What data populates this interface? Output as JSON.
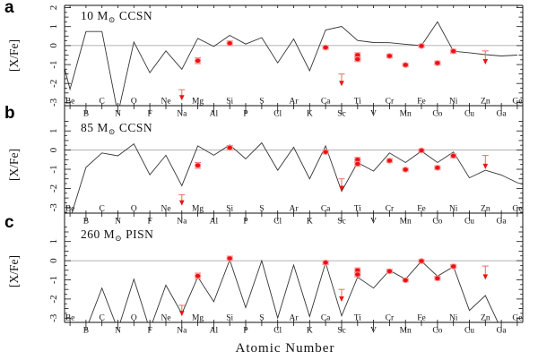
{
  "figure": {
    "xlabel": "Atomic Number",
    "ylabel": "[X/Fe]"
  },
  "colors": {
    "model_line": "#333333",
    "zero_line": "#999999",
    "axis": "#111111",
    "point_red": "#ee1111",
    "point_halo": "#ff9a9a",
    "errorbar_red": "#ff7070",
    "background": "#ffffff"
  },
  "elements": {
    "even_row": [
      {
        "z": 4,
        "sym": "Be"
      },
      {
        "z": 6,
        "sym": "C"
      },
      {
        "z": 8,
        "sym": "O"
      },
      {
        "z": 10,
        "sym": "Ne"
      },
      {
        "z": 12,
        "sym": "Mg"
      },
      {
        "z": 14,
        "sym": "Si"
      },
      {
        "z": 16,
        "sym": "S"
      },
      {
        "z": 18,
        "sym": "Ar"
      },
      {
        "z": 20,
        "sym": "Ca"
      },
      {
        "z": 22,
        "sym": "Ti"
      },
      {
        "z": 24,
        "sym": "Cr"
      },
      {
        "z": 26,
        "sym": "Fe"
      },
      {
        "z": 28,
        "sym": "Ni"
      },
      {
        "z": 30,
        "sym": "Zn"
      },
      {
        "z": 32,
        "sym": "Ge"
      }
    ],
    "odd_row": [
      {
        "z": 5,
        "sym": "B"
      },
      {
        "z": 7,
        "sym": "N"
      },
      {
        "z": 9,
        "sym": "F"
      },
      {
        "z": 11,
        "sym": "Na"
      },
      {
        "z": 13,
        "sym": "Al"
      },
      {
        "z": 15,
        "sym": "P"
      },
      {
        "z": 17,
        "sym": "Cl"
      },
      {
        "z": 19,
        "sym": "K"
      },
      {
        "z": 21,
        "sym": "Sc"
      },
      {
        "z": 23,
        "sym": "V"
      },
      {
        "z": 25,
        "sym": "Mn"
      },
      {
        "z": 27,
        "sym": "Co"
      },
      {
        "z": 29,
        "sym": "Cu"
      },
      {
        "z": 31,
        "sym": "Ga"
      }
    ]
  },
  "observations": {
    "points": [
      {
        "el": "Mg",
        "z": 12,
        "xfe": -0.8,
        "err": 0.15
      },
      {
        "el": "Si",
        "z": 14,
        "xfe": 0.12,
        "err": 0.12
      },
      {
        "el": "Ca",
        "z": 20,
        "xfe": -0.1,
        "err": 0.1
      },
      {
        "el": "Ti",
        "z": 22,
        "xfe": -0.5,
        "err": 0.12
      },
      {
        "el": "Ti",
        "z": 22,
        "xfe": -0.72,
        "err": 0.12
      },
      {
        "el": "Cr",
        "z": 24,
        "xfe": -0.55,
        "err": 0.1
      },
      {
        "el": "Mn",
        "z": 25,
        "xfe": -1.02,
        "err": 0.08
      },
      {
        "el": "Fe",
        "z": 26,
        "xfe": -0.02,
        "err": 0.08
      },
      {
        "el": "Co",
        "z": 27,
        "xfe": -0.92,
        "err": 0.1
      },
      {
        "el": "Ni",
        "z": 28,
        "xfe": -0.3,
        "err": 0.1
      }
    ],
    "upper_limits": [
      {
        "el": "Na",
        "z": 11,
        "xfe": -2.33,
        "arrow_to": -2.85
      },
      {
        "el": "Sc",
        "z": 21,
        "xfe": -1.5,
        "arrow_to": -2.1
      },
      {
        "el": "Zn",
        "z": 30,
        "xfe": -0.28,
        "arrow_to": -0.95
      }
    ]
  },
  "panels": [
    {
      "label": "a",
      "title_pre": "10 M",
      "title_sun": "⊙",
      "title_post": " CCSN",
      "ylim": [
        -3.17,
        2.12
      ],
      "yticks": [
        2,
        1,
        0,
        -1,
        -2,
        -3
      ],
      "line": {
        "z": [
          3.66,
          4,
          5,
          6,
          7,
          8,
          9,
          10,
          11,
          12,
          13,
          14,
          15,
          16,
          17,
          18,
          19,
          20,
          21,
          22,
          23,
          24,
          25,
          26,
          27,
          28,
          29,
          30,
          31,
          32
        ],
        "xfe": [
          -1.2,
          -2.3,
          0.74,
          0.74,
          -3.6,
          0.19,
          -1.43,
          -0.28,
          -1.25,
          0.38,
          -0.05,
          0.54,
          0.08,
          0.42,
          -0.91,
          0.35,
          -1.33,
          0.82,
          1.01,
          0.27,
          0.16,
          0.15,
          0.07,
          0.0,
          1.25,
          -0.3,
          -0.38,
          -0.48,
          -0.55,
          -0.5
        ]
      }
    },
    {
      "label": "b",
      "title_pre": "85 M",
      "title_sun": "⊙",
      "title_post": " CCSN",
      "ylim": [
        -3.29,
        1.71
      ],
      "yticks": [
        1,
        0,
        -1,
        -2,
        -3
      ],
      "line": {
        "z": [
          4,
          5,
          6,
          7,
          8,
          9,
          10,
          11,
          12,
          13,
          14,
          15,
          16,
          17,
          18,
          19,
          20,
          21,
          22,
          23,
          24,
          25,
          26,
          27,
          28,
          29,
          30,
          31,
          32,
          32.34
        ],
        "xfe": [
          -3.6,
          -0.9,
          -0.15,
          -0.3,
          0.32,
          -1.29,
          -0.27,
          -1.86,
          0.22,
          -0.27,
          0.27,
          -0.46,
          0.38,
          -1.05,
          0.15,
          -1.5,
          0.22,
          -2.15,
          -0.65,
          -1.1,
          -0.15,
          -0.65,
          -0.05,
          -0.65,
          -0.1,
          -1.45,
          -1.05,
          -1.3,
          -1.7,
          -1.78
        ]
      }
    },
    {
      "label": "c",
      "title_pre": "260 M",
      "title_sun": "⊙",
      "title_post": " PISN",
      "ylim": [
        -3.22,
        1.92
      ],
      "yticks": [
        1,
        0,
        -1,
        -2,
        -3
      ],
      "line": {
        "z": [
          4,
          5,
          6,
          7,
          8,
          9,
          10,
          11,
          12,
          13,
          14,
          15,
          16,
          17,
          18,
          19,
          20,
          21,
          22,
          23,
          24,
          25,
          26,
          27,
          28,
          29,
          30,
          31,
          32
        ],
        "xfe": [
          -3.6,
          -3.6,
          -1.43,
          -3.6,
          -0.97,
          -3.6,
          -1.28,
          -2.76,
          -0.85,
          -2.14,
          0.04,
          -2.45,
          0.0,
          -2.99,
          -0.23,
          -2.91,
          -0.11,
          -2.88,
          -0.86,
          -1.43,
          -0.5,
          -0.97,
          -0.03,
          -0.81,
          -0.31,
          -2.6,
          -1.82,
          -3.6,
          -3.6
        ]
      }
    }
  ],
  "chart_data": [
    {
      "type": "line",
      "panel": "a",
      "title": "10 M⊙ CCSN",
      "xlabel": "Atomic Number",
      "ylabel": "[X/Fe]",
      "xlim": [
        3.66,
        32.34
      ],
      "ylim": [
        -3.17,
        2.12
      ],
      "x": [
        4,
        5,
        6,
        7,
        8,
        9,
        10,
        11,
        12,
        13,
        14,
        15,
        16,
        17,
        18,
        19,
        20,
        21,
        22,
        23,
        24,
        25,
        26,
        27,
        28,
        29,
        30,
        31,
        32
      ],
      "series": [
        {
          "name": "model yield",
          "values": [
            -2.3,
            0.74,
            0.74,
            -3.6,
            0.19,
            -1.43,
            -0.28,
            -1.25,
            0.38,
            -0.05,
            0.54,
            0.08,
            0.42,
            -0.91,
            0.35,
            -1.33,
            0.82,
            1.01,
            0.27,
            0.16,
            0.15,
            0.07,
            0.0,
            1.25,
            -0.3,
            -0.38,
            -0.48,
            -0.55,
            -0.5
          ]
        },
        {
          "name": "observed",
          "points": [
            [
              12,
              -0.8
            ],
            [
              14,
              0.12
            ],
            [
              20,
              -0.1
            ],
            [
              22,
              -0.5
            ],
            [
              22,
              -0.72
            ],
            [
              24,
              -0.55
            ],
            [
              25,
              -1.02
            ],
            [
              26,
              -0.02
            ],
            [
              27,
              -0.92
            ],
            [
              28,
              -0.3
            ]
          ],
          "upper_limits": [
            [
              11,
              -2.33
            ],
            [
              21,
              -1.5
            ],
            [
              30,
              -0.28
            ]
          ]
        }
      ]
    },
    {
      "type": "line",
      "panel": "b",
      "title": "85 M⊙ CCSN",
      "xlabel": "Atomic Number",
      "ylabel": "[X/Fe]",
      "xlim": [
        3.66,
        32.34
      ],
      "ylim": [
        -3.29,
        1.71
      ],
      "x": [
        4,
        5,
        6,
        7,
        8,
        9,
        10,
        11,
        12,
        13,
        14,
        15,
        16,
        17,
        18,
        19,
        20,
        21,
        22,
        23,
        24,
        25,
        26,
        27,
        28,
        29,
        30,
        31,
        32
      ],
      "series": [
        {
          "name": "model yield",
          "values": [
            -3.6,
            -0.9,
            -0.15,
            -0.3,
            0.32,
            -1.29,
            -0.27,
            -1.86,
            0.22,
            -0.27,
            0.27,
            -0.46,
            0.38,
            -1.05,
            0.15,
            -1.5,
            0.22,
            -2.15,
            -0.65,
            -1.1,
            -0.15,
            -0.65,
            -0.05,
            -0.65,
            -0.1,
            -1.45,
            -1.05,
            -1.3,
            -1.7
          ]
        },
        {
          "name": "observed",
          "points": [
            [
              12,
              -0.8
            ],
            [
              14,
              0.12
            ],
            [
              20,
              -0.1
            ],
            [
              22,
              -0.5
            ],
            [
              22,
              -0.72
            ],
            [
              24,
              -0.55
            ],
            [
              25,
              -1.02
            ],
            [
              26,
              -0.02
            ],
            [
              27,
              -0.92
            ],
            [
              28,
              -0.3
            ]
          ],
          "upper_limits": [
            [
              11,
              -2.33
            ],
            [
              21,
              -1.5
            ],
            [
              30,
              -0.28
            ]
          ]
        }
      ]
    },
    {
      "type": "line",
      "panel": "c",
      "title": "260 M⊙ PISN",
      "xlabel": "Atomic Number",
      "ylabel": "[X/Fe]",
      "xlim": [
        3.66,
        32.34
      ],
      "ylim": [
        -3.22,
        1.92
      ],
      "x": [
        4,
        5,
        6,
        7,
        8,
        9,
        10,
        11,
        12,
        13,
        14,
        15,
        16,
        17,
        18,
        19,
        20,
        21,
        22,
        23,
        24,
        25,
        26,
        27,
        28,
        29,
        30,
        31,
        32
      ],
      "series": [
        {
          "name": "model yield",
          "values": [
            -3.6,
            -3.6,
            -1.43,
            -3.6,
            -0.97,
            -3.6,
            -1.28,
            -2.76,
            -0.85,
            -2.14,
            0.04,
            -2.45,
            0.0,
            -2.99,
            -0.23,
            -2.91,
            -0.11,
            -2.88,
            -0.86,
            -1.43,
            -0.5,
            -0.97,
            -0.03,
            -0.81,
            -0.31,
            -2.6,
            -1.82,
            -3.6,
            -3.6
          ]
        },
        {
          "name": "observed",
          "points": [
            [
              12,
              -0.8
            ],
            [
              14,
              0.12
            ],
            [
              20,
              -0.1
            ],
            [
              22,
              -0.5
            ],
            [
              22,
              -0.72
            ],
            [
              24,
              -0.55
            ],
            [
              25,
              -1.02
            ],
            [
              26,
              -0.02
            ],
            [
              27,
              -0.92
            ],
            [
              28,
              -0.3
            ]
          ],
          "upper_limits": [
            [
              11,
              -2.33
            ],
            [
              21,
              -1.5
            ],
            [
              30,
              -0.28
            ]
          ]
        }
      ]
    }
  ]
}
